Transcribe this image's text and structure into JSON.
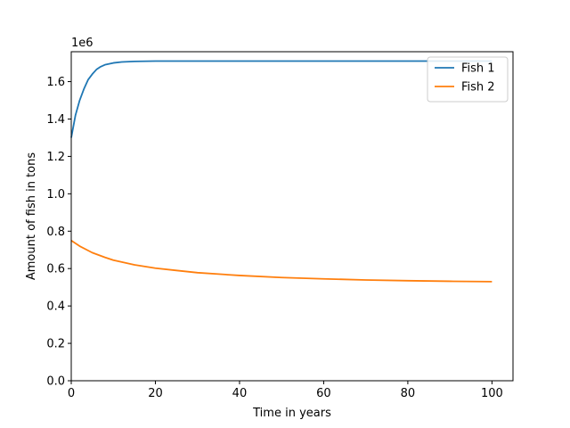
{
  "chart_data": {
    "type": "line",
    "title": "",
    "xlabel": "Time in years",
    "ylabel": "Amount of fish in tons",
    "y_offset_text": "1e6",
    "xlim": [
      0,
      105
    ],
    "ylim": [
      0,
      1.76
    ],
    "x_ticks": [
      0,
      20,
      40,
      60,
      80,
      100
    ],
    "x_tick_labels": [
      "0",
      "20",
      "40",
      "60",
      "80",
      "100"
    ],
    "y_ticks": [
      0.0,
      0.2,
      0.4,
      0.6,
      0.8,
      1.0,
      1.2,
      1.4,
      1.6
    ],
    "y_tick_labels": [
      "0.0",
      "0.2",
      "0.4",
      "0.6",
      "0.8",
      "1.0",
      "1.2",
      "1.4",
      "1.6"
    ],
    "grid": false,
    "legend_position": "top-right",
    "series": [
      {
        "name": "Fish 1",
        "color": "#1f77b4",
        "x": [
          0,
          1,
          2,
          3,
          4,
          5,
          6,
          7,
          8,
          10,
          12,
          15,
          20,
          30,
          40,
          50,
          60,
          70,
          80,
          90,
          100
        ],
        "y": [
          1.3,
          1.42,
          1.5,
          1.56,
          1.61,
          1.64,
          1.665,
          1.68,
          1.69,
          1.7,
          1.705,
          1.708,
          1.71,
          1.71,
          1.71,
          1.71,
          1.71,
          1.71,
          1.71,
          1.71,
          1.71
        ]
      },
      {
        "name": "Fish 2",
        "color": "#ff7f0e",
        "x": [
          0,
          2,
          5,
          8,
          10,
          15,
          20,
          25,
          30,
          40,
          50,
          60,
          70,
          80,
          90,
          100
        ],
        "y": [
          0.75,
          0.72,
          0.685,
          0.66,
          0.645,
          0.62,
          0.602,
          0.59,
          0.578,
          0.563,
          0.552,
          0.545,
          0.539,
          0.535,
          0.532,
          0.53
        ]
      }
    ]
  }
}
